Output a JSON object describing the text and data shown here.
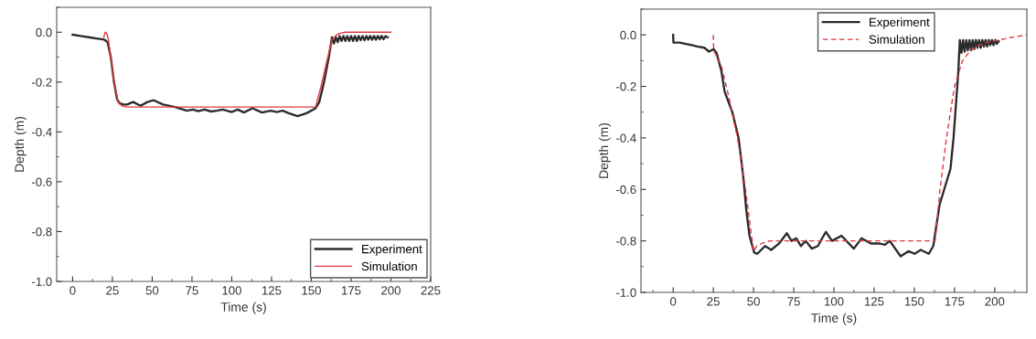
{
  "chart_data": [
    {
      "type": "line",
      "xlabel": "Time (s)",
      "ylabel": "Depth (m)",
      "xlim": [
        -10,
        225
      ],
      "ylim": [
        -1.0,
        0.1
      ],
      "xticks": [
        0,
        25,
        50,
        75,
        100,
        125,
        150,
        175,
        200,
        225
      ],
      "yticks": [
        {
          "value": 0.0,
          "label": "0.0"
        },
        {
          "value": -0.2,
          "label": "-0.2"
        },
        {
          "value": -0.4,
          "label": "-0.4"
        },
        {
          "value": -0.6,
          "label": "-0.6"
        },
        {
          "value": -0.8,
          "label": "-0.8"
        },
        {
          "value": -1.0,
          "label": "-1.0"
        }
      ],
      "legend": "lower right",
      "grid": false,
      "series": [
        {
          "name": "Experiment",
          "color": "#2b2b2b",
          "line_style": "solid",
          "x": [
            0,
            5,
            10,
            15,
            20,
            22,
            24,
            26,
            28,
            29.5,
            32,
            34.2,
            38,
            42.7,
            47,
            51,
            56.8,
            64.3,
            71.8,
            75.6,
            79,
            83,
            87,
            90.7,
            94.4,
            100,
            103.8,
            107.6,
            113,
            119,
            124.5,
            128.3,
            132,
            135.8,
            141.4,
            147,
            152.7,
            155,
            158,
            161,
            163,
            164.2,
            165.4,
            166.6,
            167.8,
            169,
            170.2,
            171.4,
            172.6,
            173.8,
            175,
            176.2,
            177.4,
            178.6,
            179.8,
            181,
            182.2,
            183.4,
            184.6,
            185.8,
            187,
            188.2,
            189.4,
            190.6,
            191.8,
            193,
            194.2,
            195.4,
            196.6,
            198
          ],
          "values": [
            -0.01,
            -0.015,
            -0.02,
            -0.025,
            -0.03,
            -0.04,
            -0.1,
            -0.2,
            -0.27,
            -0.285,
            -0.29,
            -0.29,
            -0.28,
            -0.295,
            -0.28,
            -0.273,
            -0.29,
            -0.3,
            -0.315,
            -0.31,
            -0.317,
            -0.31,
            -0.318,
            -0.315,
            -0.31,
            -0.32,
            -0.31,
            -0.322,
            -0.305,
            -0.322,
            -0.315,
            -0.32,
            -0.315,
            -0.325,
            -0.337,
            -0.325,
            -0.305,
            -0.28,
            -0.2,
            -0.1,
            -0.02,
            -0.045,
            -0.02,
            -0.04,
            -0.015,
            -0.035,
            -0.015,
            -0.035,
            -0.015,
            -0.035,
            -0.015,
            -0.035,
            -0.015,
            -0.035,
            -0.015,
            -0.032,
            -0.015,
            -0.032,
            -0.015,
            -0.03,
            -0.015,
            -0.03,
            -0.015,
            -0.03,
            -0.015,
            -0.028,
            -0.015,
            -0.028,
            -0.016,
            -0.02
          ]
        },
        {
          "name": "Simulation",
          "color": "#e0383e",
          "line_style": "solid",
          "x": [
            19.6,
            20.5,
            21.5,
            22.5,
            24,
            26,
            28.6,
            31,
            34,
            152.7,
            156,
            160,
            163,
            166,
            168,
            171.5,
            200
          ],
          "values": [
            -0.02,
            0.0,
            -0.005,
            -0.03,
            -0.1,
            -0.2,
            -0.28,
            -0.295,
            -0.3,
            -0.3,
            -0.22,
            -0.11,
            -0.03,
            -0.01,
            -0.004,
            0.0,
            0.0
          ]
        }
      ]
    },
    {
      "type": "line",
      "xlabel": "Time (s)",
      "ylabel": "Depth (m)",
      "xlim": [
        -20,
        220
      ],
      "ylim": [
        -1.0,
        0.1
      ],
      "xticks": [
        0,
        25,
        50,
        75,
        100,
        125,
        150,
        175,
        200
      ],
      "yticks": [
        {
          "value": 0.0,
          "label": "0.0"
        },
        {
          "value": -0.2,
          "label": "-0.2"
        },
        {
          "value": -0.4,
          "label": "-0.4"
        },
        {
          "value": -0.6,
          "label": "-0.6"
        },
        {
          "value": -0.8,
          "label": "-0.8"
        },
        {
          "value": -1.0,
          "label": "-1.0"
        }
      ],
      "legend": "top right",
      "grid": false,
      "series": [
        {
          "name": "Experiment",
          "color": "#2b2b2b",
          "line_style": "solid",
          "x": [
            0,
            0.2,
            4,
            8,
            11.6,
            15,
            19.4,
            22.3,
            25.2,
            27,
            30,
            32,
            36.8,
            40.7,
            43.6,
            45.5,
            47.5,
            50.4,
            52.3,
            57.2,
            61,
            65.9,
            70.7,
            73.6,
            76.6,
            79.5,
            82.4,
            86.2,
            90,
            95,
            98.8,
            104.7,
            112.4,
            117.2,
            123,
            128,
            131.8,
            134.7,
            141.5,
            146.3,
            150.2,
            154,
            159,
            161.8,
            165.7,
            168.6,
            172.5,
            174.4,
            177.3,
            178.3,
            179.3,
            180.3,
            181.3,
            182.3,
            183.3,
            184.3,
            185.3,
            186.3,
            187.3,
            188.3,
            189.3,
            190.3,
            191.3,
            192.3,
            193.3,
            194.3,
            195.3,
            196.3,
            197.3,
            198.3,
            199.3,
            200.3,
            201.3,
            202.5
          ],
          "values": [
            -0.0,
            -0.03,
            -0.03,
            -0.035,
            -0.04,
            -0.045,
            -0.05,
            -0.065,
            -0.055,
            -0.07,
            -0.14,
            -0.22,
            -0.3,
            -0.4,
            -0.55,
            -0.68,
            -0.78,
            -0.845,
            -0.85,
            -0.82,
            -0.835,
            -0.81,
            -0.77,
            -0.8,
            -0.79,
            -0.82,
            -0.8,
            -0.83,
            -0.82,
            -0.765,
            -0.8,
            -0.78,
            -0.83,
            -0.79,
            -0.81,
            -0.81,
            -0.815,
            -0.8,
            -0.86,
            -0.84,
            -0.85,
            -0.835,
            -0.85,
            -0.82,
            -0.66,
            -0.6,
            -0.52,
            -0.4,
            -0.15,
            -0.02,
            -0.07,
            -0.02,
            -0.065,
            -0.02,
            -0.06,
            -0.02,
            -0.06,
            -0.02,
            -0.055,
            -0.02,
            -0.05,
            -0.02,
            -0.05,
            -0.02,
            -0.045,
            -0.02,
            -0.045,
            -0.02,
            -0.04,
            -0.02,
            -0.04,
            -0.02,
            -0.035,
            -0.025
          ]
        },
        {
          "name": "Simulation",
          "color": "#e0383e",
          "line_style": "dashed",
          "x": [
            25,
            25.2,
            30,
            35,
            40,
            45,
            50,
            52,
            55,
            60,
            163,
            166,
            170,
            175,
            180,
            185,
            190,
            195,
            210,
            220
          ],
          "values": [
            0.0,
            -0.06,
            -0.12,
            -0.25,
            -0.4,
            -0.6,
            -0.84,
            -0.82,
            -0.81,
            -0.8,
            -0.8,
            -0.6,
            -0.4,
            -0.2,
            -0.1,
            -0.06,
            -0.04,
            -0.03,
            -0.01,
            0.0
          ]
        }
      ]
    }
  ]
}
